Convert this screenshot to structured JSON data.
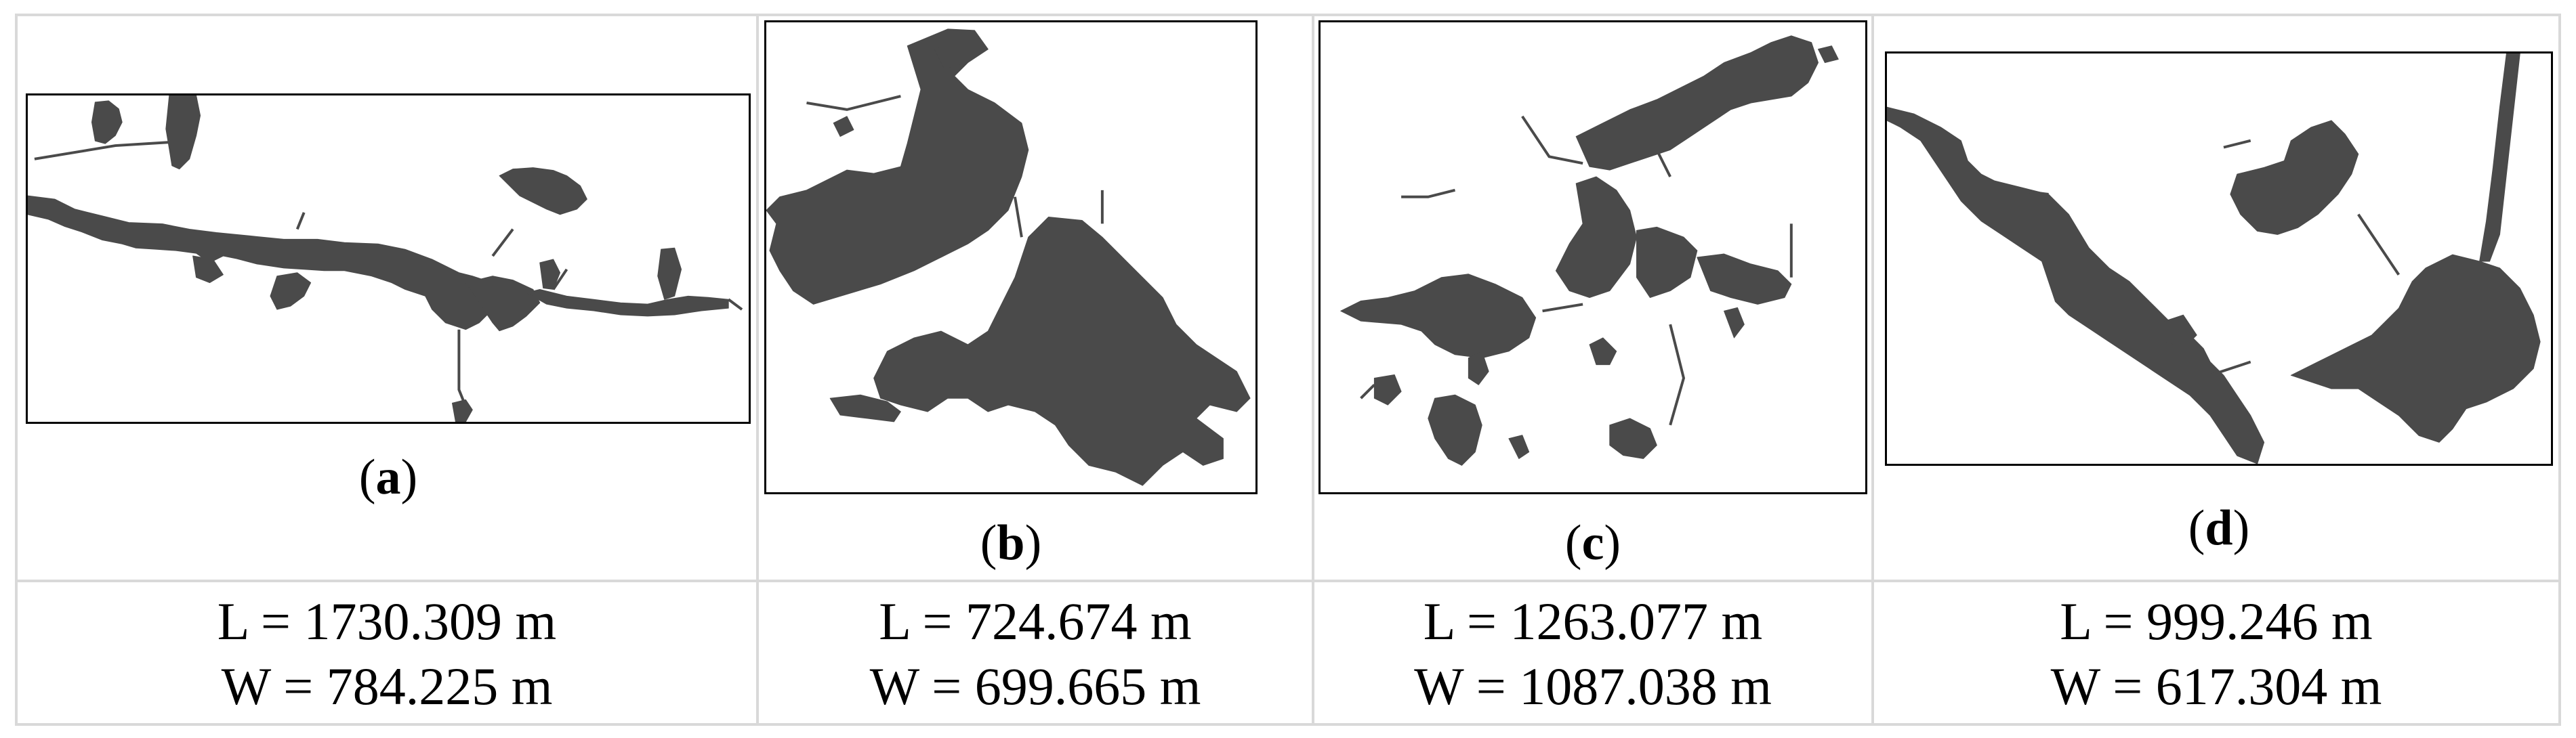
{
  "panels": [
    {
      "id": "a",
      "label": "a",
      "length": "L = 1730.309 m",
      "width": "W = 784.225 m"
    },
    {
      "id": "b",
      "label": "b",
      "length": "L = 724.674 m",
      "width": "W = 699.665 m"
    },
    {
      "id": "c",
      "label": "c",
      "length": "L = 1263.077 m",
      "width": "W = 1087.038 m"
    },
    {
      "id": "d",
      "label": "d",
      "length": "L = 999.246 m",
      "width": "W = 617.304 m"
    }
  ],
  "colors": {
    "shape": "#4a4a4a",
    "frame": "#000000",
    "grid": "#d9d9d9"
  }
}
